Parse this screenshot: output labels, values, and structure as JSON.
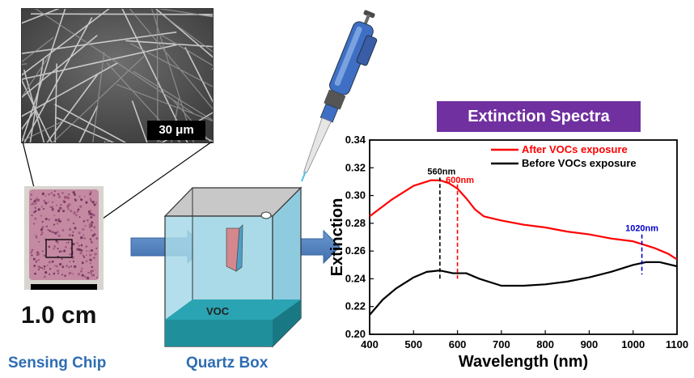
{
  "labels": {
    "sem_scale": "30 μm",
    "chip_scale": "1.0 cm",
    "sensing_chip": "Sensing Chip",
    "quartz_box": "Quartz Box",
    "voc": "VOC",
    "spectra_title": "Extinction Spectra"
  },
  "colors": {
    "title_bg": "#7030a0",
    "label_blue": "#2e6db4",
    "after_line": "#ff0000",
    "before_line": "#000000",
    "marker_1020": "#0000cc"
  },
  "chart_data": {
    "type": "line",
    "title": "",
    "xlabel": "Wavelength (nm)",
    "ylabel": "Extinction",
    "xlim": [
      400,
      1100
    ],
    "ylim": [
      0.2,
      0.34
    ],
    "xticks": [
      "400",
      "500",
      "600",
      "700",
      "800",
      "900",
      "1000",
      "1100"
    ],
    "yticks": [
      "0.20",
      "0.22",
      "0.24",
      "0.26",
      "0.28",
      "0.30",
      "0.32",
      "0.34"
    ],
    "legend_position": "top-right",
    "series": [
      {
        "name": "After VOCs exposure",
        "color": "#ff0000",
        "x": [
          400,
          450,
          500,
          540,
          560,
          580,
          600,
          620,
          640,
          660,
          700,
          750,
          800,
          850,
          900,
          950,
          1000,
          1020,
          1050,
          1080,
          1100
        ],
        "y": [
          0.285,
          0.297,
          0.307,
          0.311,
          0.311,
          0.309,
          0.305,
          0.298,
          0.29,
          0.285,
          0.282,
          0.279,
          0.277,
          0.274,
          0.272,
          0.269,
          0.267,
          0.265,
          0.262,
          0.258,
          0.254
        ]
      },
      {
        "name": "Before VOCs exposure",
        "color": "#000000",
        "x": [
          400,
          430,
          460,
          500,
          530,
          560,
          590,
          620,
          650,
          700,
          750,
          800,
          850,
          900,
          950,
          1000,
          1030,
          1060,
          1100
        ],
        "y": [
          0.214,
          0.225,
          0.233,
          0.241,
          0.245,
          0.246,
          0.244,
          0.244,
          0.24,
          0.235,
          0.235,
          0.236,
          0.238,
          0.241,
          0.245,
          0.25,
          0.252,
          0.252,
          0.249
        ]
      }
    ],
    "annotations": [
      {
        "text": "560nm",
        "x": 560,
        "color": "#000000"
      },
      {
        "text": "600nm",
        "x": 600,
        "color": "#ff0000"
      },
      {
        "text": "1020nm",
        "x": 1020,
        "color": "#0000cc"
      }
    ]
  }
}
